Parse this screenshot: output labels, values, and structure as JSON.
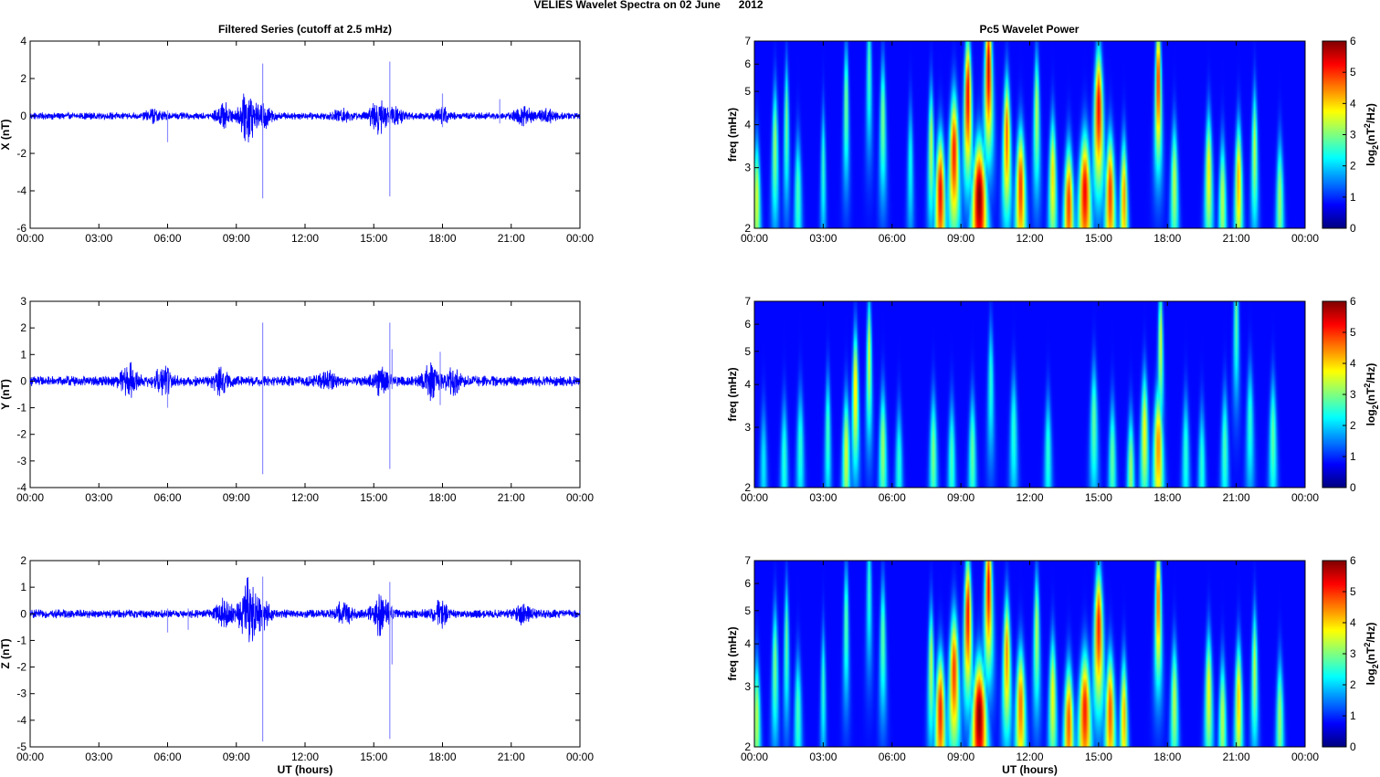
{
  "figure": {
    "suptitle": "VELIES Wavelet Spectra on 02 June      2012",
    "left_title": "Filtered Series (cutoff at 2.5 mHz)",
    "right_title": "Pc5 Wavelet Power",
    "xlabel": "UT (hours)"
  },
  "colors": {
    "trace": "#0000ff",
    "spike": "#8c8cff",
    "background": "#ffffff",
    "colormap": "jet"
  },
  "chart_data": [
    {
      "type": "line",
      "component": "X",
      "title": "Filtered Series (cutoff at 2.5 mHz)",
      "ylabel": "X (nT)",
      "xlabel": "",
      "xlim": [
        0,
        24
      ],
      "ylim": [
        -6,
        4
      ],
      "yticks": [
        -6,
        -4,
        -2,
        0,
        2,
        4
      ],
      "xticks": [
        "00:00",
        "03:00",
        "06:00",
        "09:00",
        "12:00",
        "15:00",
        "18:00",
        "21:00",
        "00:00"
      ],
      "baseline_noise": 0.12,
      "bursts": [
        {
          "t": 5.4,
          "amp": 0.15
        },
        {
          "t": 8.5,
          "amp": 0.35
        },
        {
          "t": 9.5,
          "amp": 0.8
        },
        {
          "t": 10.2,
          "amp": 0.35
        },
        {
          "t": 13.6,
          "amp": 0.2
        },
        {
          "t": 15.2,
          "amp": 0.55
        },
        {
          "t": 16.0,
          "amp": 0.25
        },
        {
          "t": 18.0,
          "amp": 0.2
        },
        {
          "t": 21.5,
          "amp": 0.3
        },
        {
          "t": 22.6,
          "amp": 0.18
        }
      ],
      "spikes": [
        {
          "t": 6.0,
          "lo": -1.4,
          "hi": 0.3
        },
        {
          "t": 10.15,
          "lo": -4.4,
          "hi": 2.8
        },
        {
          "t": 15.7,
          "lo": -4.3,
          "hi": 2.9
        },
        {
          "t": 18.0,
          "lo": -0.6,
          "hi": 1.2
        },
        {
          "t": 20.5,
          "lo": -0.4,
          "hi": 0.9
        }
      ]
    },
    {
      "type": "line",
      "component": "Y",
      "title": "",
      "ylabel": "Y (nT)",
      "xlabel": "",
      "xlim": [
        0,
        24
      ],
      "ylim": [
        -4,
        3
      ],
      "yticks": [
        -4,
        -3,
        -2,
        -1,
        0,
        1,
        2,
        3
      ],
      "xticks": [
        "00:00",
        "03:00",
        "06:00",
        "09:00",
        "12:00",
        "15:00",
        "18:00",
        "21:00",
        "00:00"
      ],
      "baseline_noise": 0.12,
      "bursts": [
        {
          "t": 4.3,
          "amp": 0.35
        },
        {
          "t": 5.8,
          "amp": 0.3
        },
        {
          "t": 8.3,
          "amp": 0.25
        },
        {
          "t": 13.0,
          "amp": 0.15
        },
        {
          "t": 15.3,
          "amp": 0.25
        },
        {
          "t": 17.5,
          "amp": 0.35
        },
        {
          "t": 18.5,
          "amp": 0.25
        }
      ],
      "spikes": [
        {
          "t": 6.0,
          "lo": -1.0,
          "hi": 0.3
        },
        {
          "t": 10.15,
          "lo": -3.5,
          "hi": 2.2
        },
        {
          "t": 15.7,
          "lo": -3.3,
          "hi": 2.2
        },
        {
          "t": 15.8,
          "lo": -0.3,
          "hi": 1.2
        },
        {
          "t": 17.9,
          "lo": -0.9,
          "hi": 1.1
        }
      ]
    },
    {
      "type": "line",
      "component": "Z",
      "title": "",
      "ylabel": "Z (nT)",
      "xlabel": "UT (hours)",
      "xlim": [
        0,
        24
      ],
      "ylim": [
        -5,
        2
      ],
      "yticks": [
        -5,
        -4,
        -3,
        -2,
        -1,
        0,
        1,
        2
      ],
      "xticks": [
        "00:00",
        "03:00",
        "06:00",
        "09:00",
        "12:00",
        "15:00",
        "18:00",
        "21:00",
        "00:00"
      ],
      "baseline_noise": 0.1,
      "bursts": [
        {
          "t": 8.5,
          "amp": 0.3
        },
        {
          "t": 9.5,
          "amp": 0.75
        },
        {
          "t": 10.2,
          "amp": 0.3
        },
        {
          "t": 13.7,
          "amp": 0.25
        },
        {
          "t": 15.3,
          "amp": 0.45
        },
        {
          "t": 17.9,
          "amp": 0.25
        },
        {
          "t": 21.5,
          "amp": 0.2
        }
      ],
      "spikes": [
        {
          "t": 6.0,
          "lo": -0.7,
          "hi": 0.2
        },
        {
          "t": 6.9,
          "lo": -0.6,
          "hi": 0.2
        },
        {
          "t": 10.15,
          "lo": -4.8,
          "hi": 1.4
        },
        {
          "t": 15.7,
          "lo": -4.7,
          "hi": 1.2
        },
        {
          "t": 15.8,
          "lo": -1.9,
          "hi": 0.3
        }
      ]
    },
    {
      "type": "heatmap",
      "component": "X",
      "title": "Pc5 Wavelet Power",
      "ylabel": "freq (mHz)",
      "xlabel": "",
      "colorbar_label": "log2(nT^2/Hz)",
      "xlim": [
        0,
        24
      ],
      "ylim": [
        2,
        7
      ],
      "yscale": "log",
      "yticks": [
        2,
        3,
        4,
        5,
        6,
        7
      ],
      "clim": [
        0,
        6
      ],
      "cbar_ticks": [
        0,
        1,
        2,
        3,
        4,
        5,
        6
      ],
      "xticks": [
        "00:00",
        "03:00",
        "06:00",
        "09:00",
        "12:00",
        "15:00",
        "18:00",
        "21:00",
        "00:00"
      ],
      "blobs": [
        {
          "t": 0.1,
          "a": 3.2,
          "f": 2.5,
          "tw": 0.15
        },
        {
          "t": 0.9,
          "a": 2.8,
          "f": 3.6,
          "tw": 0.12
        },
        {
          "t": 1.4,
          "a": 2.5,
          "f": 4.2,
          "tw": 0.1
        },
        {
          "t": 1.9,
          "a": 2.2,
          "f": 2.6,
          "tw": 0.15
        },
        {
          "t": 3.0,
          "a": 2.0,
          "f": 3.1,
          "tw": 0.1
        },
        {
          "t": 4.0,
          "a": 2.6,
          "f": 4.8,
          "tw": 0.1
        },
        {
          "t": 5.0,
          "a": 2.2,
          "f": 6.0,
          "tw": 0.1
        },
        {
          "t": 5.6,
          "a": 2.6,
          "f": 4.3,
          "tw": 0.12
        },
        {
          "t": 6.8,
          "a": 1.8,
          "f": 3.2,
          "tw": 0.12
        },
        {
          "t": 7.7,
          "a": 3.0,
          "f": 3.6,
          "tw": 0.12
        },
        {
          "t": 8.1,
          "a": 5.2,
          "f": 2.6,
          "tw": 0.2
        },
        {
          "t": 8.7,
          "a": 5.0,
          "f": 3.4,
          "tw": 0.2
        },
        {
          "t": 9.3,
          "a": 5.3,
          "f": 5.0,
          "tw": 0.15
        },
        {
          "t": 9.8,
          "a": 6.0,
          "f": 2.5,
          "tw": 0.3
        },
        {
          "t": 10.2,
          "a": 5.5,
          "f": 6.0,
          "tw": 0.15
        },
        {
          "t": 11.0,
          "a": 4.5,
          "f": 3.8,
          "tw": 0.15
        },
        {
          "t": 11.6,
          "a": 4.8,
          "f": 2.7,
          "tw": 0.2
        },
        {
          "t": 12.3,
          "a": 3.0,
          "f": 4.5,
          "tw": 0.12
        },
        {
          "t": 13.0,
          "a": 3.6,
          "f": 2.9,
          "tw": 0.15
        },
        {
          "t": 13.7,
          "a": 4.8,
          "f": 2.4,
          "tw": 0.2
        },
        {
          "t": 14.4,
          "a": 5.2,
          "f": 2.6,
          "tw": 0.25
        },
        {
          "t": 15.0,
          "a": 5.2,
          "f": 4.6,
          "tw": 0.18
        },
        {
          "t": 15.5,
          "a": 4.8,
          "f": 2.6,
          "tw": 0.2
        },
        {
          "t": 16.1,
          "a": 4.2,
          "f": 2.5,
          "tw": 0.15
        },
        {
          "t": 17.6,
          "a": 5.0,
          "f": 5.5,
          "tw": 0.12
        },
        {
          "t": 18.3,
          "a": 3.0,
          "f": 2.8,
          "tw": 0.15
        },
        {
          "t": 19.8,
          "a": 3.5,
          "f": 3.0,
          "tw": 0.15
        },
        {
          "t": 20.4,
          "a": 3.0,
          "f": 2.5,
          "tw": 0.15
        },
        {
          "t": 21.1,
          "a": 4.0,
          "f": 2.8,
          "tw": 0.15
        },
        {
          "t": 21.8,
          "a": 3.0,
          "f": 3.5,
          "tw": 0.12
        },
        {
          "t": 22.9,
          "a": 2.8,
          "f": 2.5,
          "tw": 0.15
        }
      ]
    },
    {
      "type": "heatmap",
      "component": "Y",
      "title": "",
      "ylabel": "freq (mHz)",
      "xlabel": "",
      "colorbar_label": "log2(nT^2/Hz)",
      "xlim": [
        0,
        24
      ],
      "ylim": [
        2,
        7
      ],
      "yscale": "log",
      "yticks": [
        2,
        3,
        4,
        5,
        6,
        7
      ],
      "clim": [
        0,
        6
      ],
      "cbar_ticks": [
        0,
        1,
        2,
        3,
        4,
        5,
        6
      ],
      "xticks": [
        "00:00",
        "03:00",
        "06:00",
        "09:00",
        "12:00",
        "15:00",
        "18:00",
        "21:00",
        "00:00"
      ],
      "blobs": [
        {
          "t": 0.4,
          "a": 1.6,
          "f": 2.4,
          "tw": 0.15
        },
        {
          "t": 1.3,
          "a": 2.0,
          "f": 2.5,
          "tw": 0.15
        },
        {
          "t": 2.0,
          "a": 2.0,
          "f": 2.7,
          "tw": 0.15
        },
        {
          "t": 3.2,
          "a": 2.2,
          "f": 3.0,
          "tw": 0.12
        },
        {
          "t": 4.0,
          "a": 3.2,
          "f": 2.6,
          "tw": 0.15
        },
        {
          "t": 4.4,
          "a": 3.8,
          "f": 4.0,
          "tw": 0.12
        },
        {
          "t": 5.0,
          "a": 3.2,
          "f": 5.0,
          "tw": 0.1
        },
        {
          "t": 5.6,
          "a": 2.8,
          "f": 2.7,
          "tw": 0.15
        },
        {
          "t": 6.3,
          "a": 2.0,
          "f": 2.4,
          "tw": 0.15
        },
        {
          "t": 7.8,
          "a": 2.6,
          "f": 2.6,
          "tw": 0.15
        },
        {
          "t": 8.6,
          "a": 2.2,
          "f": 2.5,
          "tw": 0.15
        },
        {
          "t": 9.5,
          "a": 2.4,
          "f": 2.6,
          "tw": 0.15
        },
        {
          "t": 10.3,
          "a": 2.0,
          "f": 4.2,
          "tw": 0.12
        },
        {
          "t": 11.3,
          "a": 2.0,
          "f": 3.0,
          "tw": 0.15
        },
        {
          "t": 12.8,
          "a": 2.0,
          "f": 2.6,
          "tw": 0.15
        },
        {
          "t": 14.8,
          "a": 2.4,
          "f": 3.2,
          "tw": 0.15
        },
        {
          "t": 15.6,
          "a": 2.4,
          "f": 2.5,
          "tw": 0.15
        },
        {
          "t": 16.4,
          "a": 2.8,
          "f": 2.3,
          "tw": 0.15
        },
        {
          "t": 17.0,
          "a": 3.4,
          "f": 3.0,
          "tw": 0.15
        },
        {
          "t": 17.6,
          "a": 4.2,
          "f": 2.7,
          "tw": 0.2
        },
        {
          "t": 17.7,
          "a": 3.2,
          "f": 5.5,
          "tw": 0.1
        },
        {
          "t": 18.8,
          "a": 2.0,
          "f": 2.6,
          "tw": 0.15
        },
        {
          "t": 19.5,
          "a": 2.0,
          "f": 2.4,
          "tw": 0.15
        },
        {
          "t": 20.5,
          "a": 2.2,
          "f": 2.7,
          "tw": 0.15
        },
        {
          "t": 21.0,
          "a": 2.4,
          "f": 6.5,
          "tw": 0.1
        },
        {
          "t": 21.6,
          "a": 2.0,
          "f": 3.2,
          "tw": 0.15
        },
        {
          "t": 22.6,
          "a": 2.4,
          "f": 2.9,
          "tw": 0.15
        }
      ]
    },
    {
      "type": "heatmap",
      "component": "Z",
      "title": "",
      "ylabel": "freq (mHz)",
      "xlabel": "UT (hours)",
      "colorbar_label": "log2(nT^2/Hz)",
      "xlim": [
        0,
        24
      ],
      "ylim": [
        2,
        7
      ],
      "yscale": "log",
      "yticks": [
        2,
        3,
        4,
        5,
        6,
        7
      ],
      "clim": [
        0,
        6
      ],
      "cbar_ticks": [
        0,
        1,
        2,
        3,
        4,
        5,
        6
      ],
      "xticks": [
        "00:00",
        "03:00",
        "06:00",
        "09:00",
        "12:00",
        "15:00",
        "18:00",
        "21:00",
        "00:00"
      ],
      "blobs": [
        {
          "t": 0.1,
          "a": 3.0,
          "f": 2.5,
          "tw": 0.15
        },
        {
          "t": 0.9,
          "a": 2.6,
          "f": 3.6,
          "tw": 0.12
        },
        {
          "t": 1.4,
          "a": 2.4,
          "f": 4.2,
          "tw": 0.1
        },
        {
          "t": 1.9,
          "a": 2.2,
          "f": 2.6,
          "tw": 0.15
        },
        {
          "t": 3.0,
          "a": 2.0,
          "f": 3.1,
          "tw": 0.1
        },
        {
          "t": 4.0,
          "a": 2.4,
          "f": 4.8,
          "tw": 0.1
        },
        {
          "t": 5.0,
          "a": 2.0,
          "f": 6.0,
          "tw": 0.1
        },
        {
          "t": 5.6,
          "a": 2.4,
          "f": 4.3,
          "tw": 0.12
        },
        {
          "t": 7.7,
          "a": 3.0,
          "f": 3.6,
          "tw": 0.12
        },
        {
          "t": 8.1,
          "a": 5.0,
          "f": 2.6,
          "tw": 0.2
        },
        {
          "t": 8.7,
          "a": 4.8,
          "f": 3.4,
          "tw": 0.2
        },
        {
          "t": 9.3,
          "a": 5.2,
          "f": 5.0,
          "tw": 0.15
        },
        {
          "t": 9.8,
          "a": 6.0,
          "f": 2.5,
          "tw": 0.3
        },
        {
          "t": 10.2,
          "a": 5.2,
          "f": 6.0,
          "tw": 0.15
        },
        {
          "t": 11.0,
          "a": 4.2,
          "f": 3.8,
          "tw": 0.15
        },
        {
          "t": 11.6,
          "a": 4.4,
          "f": 2.7,
          "tw": 0.2
        },
        {
          "t": 12.3,
          "a": 3.0,
          "f": 4.5,
          "tw": 0.12
        },
        {
          "t": 13.0,
          "a": 3.4,
          "f": 2.9,
          "tw": 0.15
        },
        {
          "t": 13.7,
          "a": 4.6,
          "f": 2.4,
          "tw": 0.2
        },
        {
          "t": 14.4,
          "a": 5.0,
          "f": 2.6,
          "tw": 0.25
        },
        {
          "t": 15.0,
          "a": 5.0,
          "f": 4.6,
          "tw": 0.18
        },
        {
          "t": 15.5,
          "a": 4.6,
          "f": 2.6,
          "tw": 0.2
        },
        {
          "t": 16.1,
          "a": 4.0,
          "f": 2.5,
          "tw": 0.15
        },
        {
          "t": 17.6,
          "a": 4.6,
          "f": 5.5,
          "tw": 0.12
        },
        {
          "t": 18.3,
          "a": 3.0,
          "f": 2.8,
          "tw": 0.15
        },
        {
          "t": 19.8,
          "a": 3.4,
          "f": 3.0,
          "tw": 0.15
        },
        {
          "t": 20.4,
          "a": 3.0,
          "f": 2.5,
          "tw": 0.15
        },
        {
          "t": 21.1,
          "a": 3.8,
          "f": 2.8,
          "tw": 0.15
        },
        {
          "t": 21.8,
          "a": 3.0,
          "f": 3.5,
          "tw": 0.12
        },
        {
          "t": 22.9,
          "a": 2.8,
          "f": 2.5,
          "tw": 0.15
        }
      ]
    }
  ]
}
